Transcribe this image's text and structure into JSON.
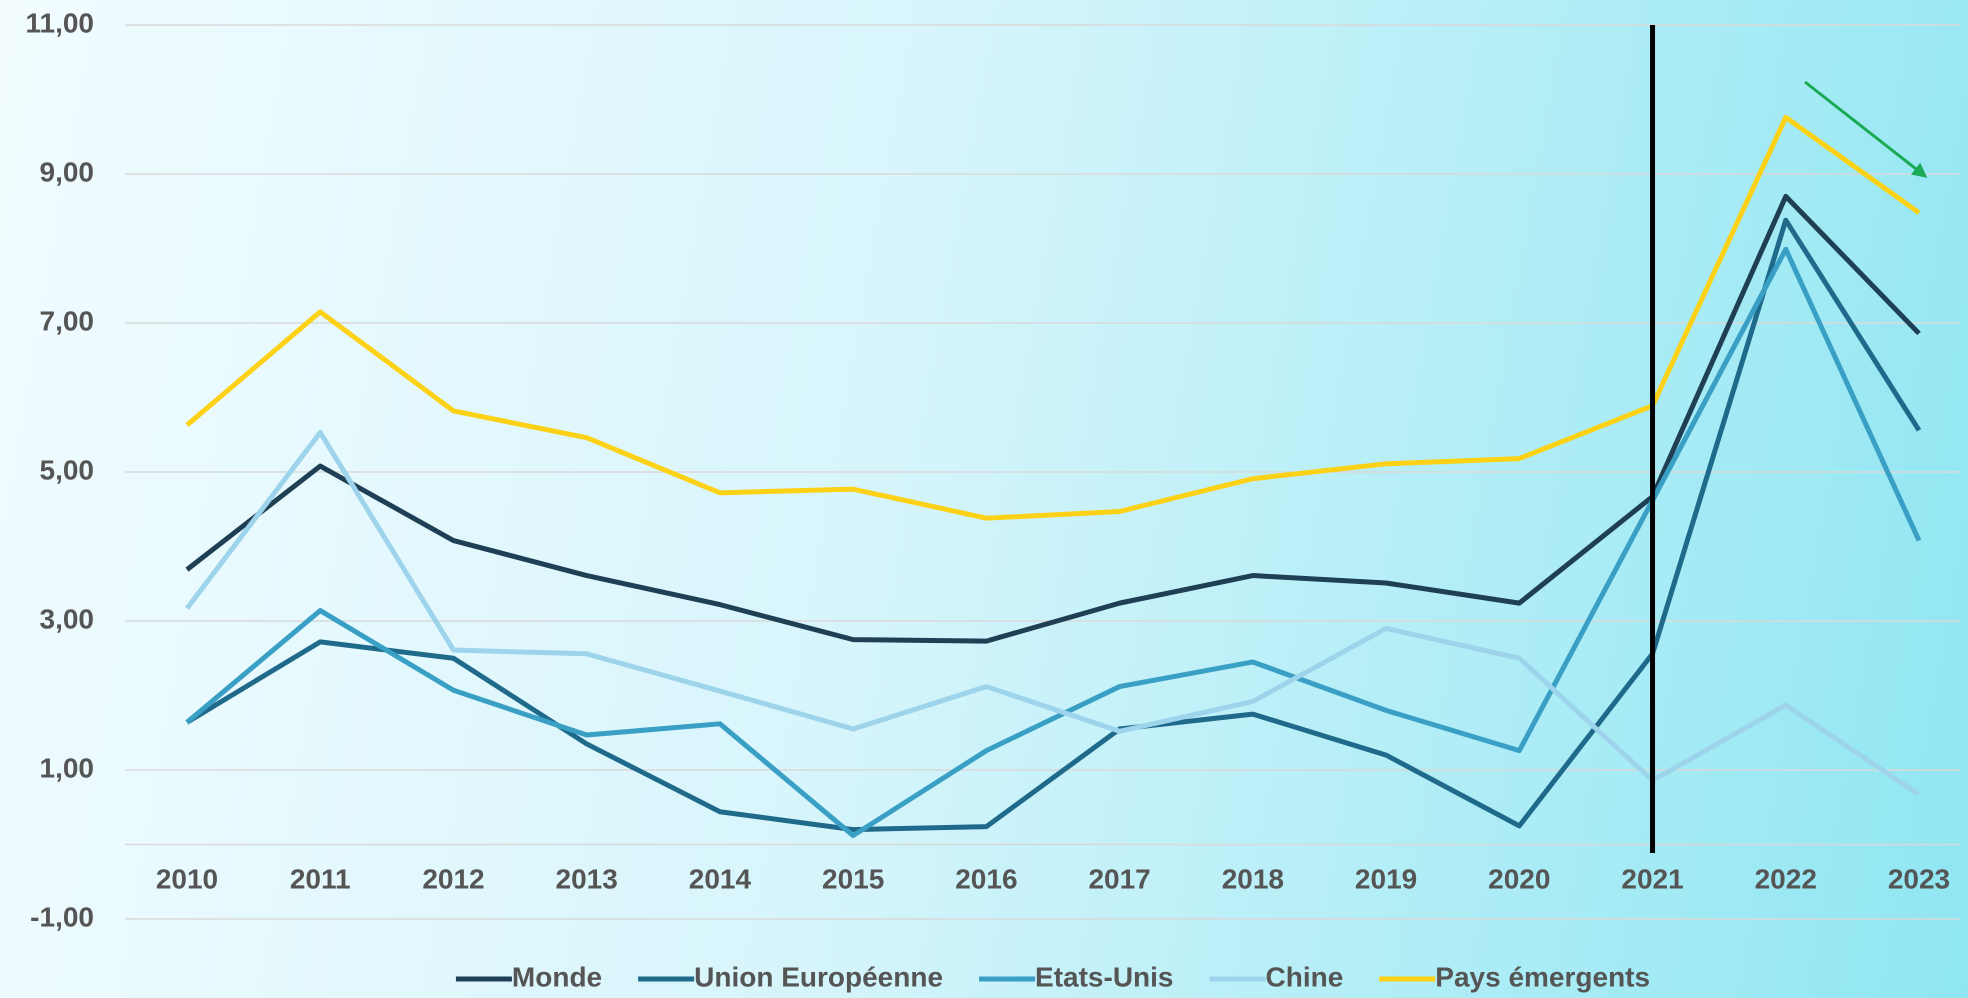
{
  "chart_data": {
    "type": "line",
    "categories": [
      "2010",
      "2011",
      "2012",
      "2013",
      "2014",
      "2015",
      "2016",
      "2017",
      "2018",
      "2019",
      "2020",
      "2021",
      "2022",
      "2023"
    ],
    "series": [
      {
        "name": "Monde",
        "color": "#1f3f55",
        "values": [
          3.69,
          5.08,
          4.08,
          3.61,
          3.22,
          2.75,
          2.73,
          3.24,
          3.61,
          3.51,
          3.24,
          4.67,
          8.7,
          6.86
        ]
      },
      {
        "name": "Union Européenne",
        "color": "#1f6a8a",
        "values": [
          1.64,
          2.72,
          2.5,
          1.35,
          0.44,
          0.2,
          0.24,
          1.55,
          1.75,
          1.2,
          0.25,
          2.56,
          8.38,
          5.56
        ]
      },
      {
        "name": "Etats-Unis",
        "color": "#3a9fc4",
        "values": [
          1.64,
          3.14,
          2.07,
          1.47,
          1.62,
          0.12,
          1.26,
          2.12,
          2.45,
          1.8,
          1.26,
          4.62,
          7.99,
          4.08
        ]
      },
      {
        "name": "Chine",
        "color": "#9dd4ec",
        "values": [
          3.17,
          5.53,
          2.61,
          2.56,
          2.06,
          1.55,
          2.12,
          1.52,
          1.92,
          2.9,
          2.5,
          0.86,
          1.87,
          0.67
        ]
      },
      {
        "name": "Pays émergents",
        "color": "#fcd116",
        "values": [
          5.63,
          7.15,
          5.82,
          5.46,
          4.72,
          4.77,
          4.38,
          4.47,
          4.91,
          5.11,
          5.18,
          5.89,
          9.76,
          8.48
        ]
      }
    ],
    "ylim": [
      -1,
      11
    ],
    "yticks": [
      {
        "value": -1,
        "label": "-1,00"
      },
      {
        "value": 1,
        "label": "1,00"
      },
      {
        "value": 3,
        "label": "3,00"
      },
      {
        "value": 5,
        "label": "5,00"
      },
      {
        "value": 7,
        "label": "7,00"
      },
      {
        "value": 9,
        "label": "9,00"
      },
      {
        "value": 11,
        "label": "11,00"
      }
    ],
    "grid": true,
    "vline": "2021",
    "legend": "bottom"
  }
}
